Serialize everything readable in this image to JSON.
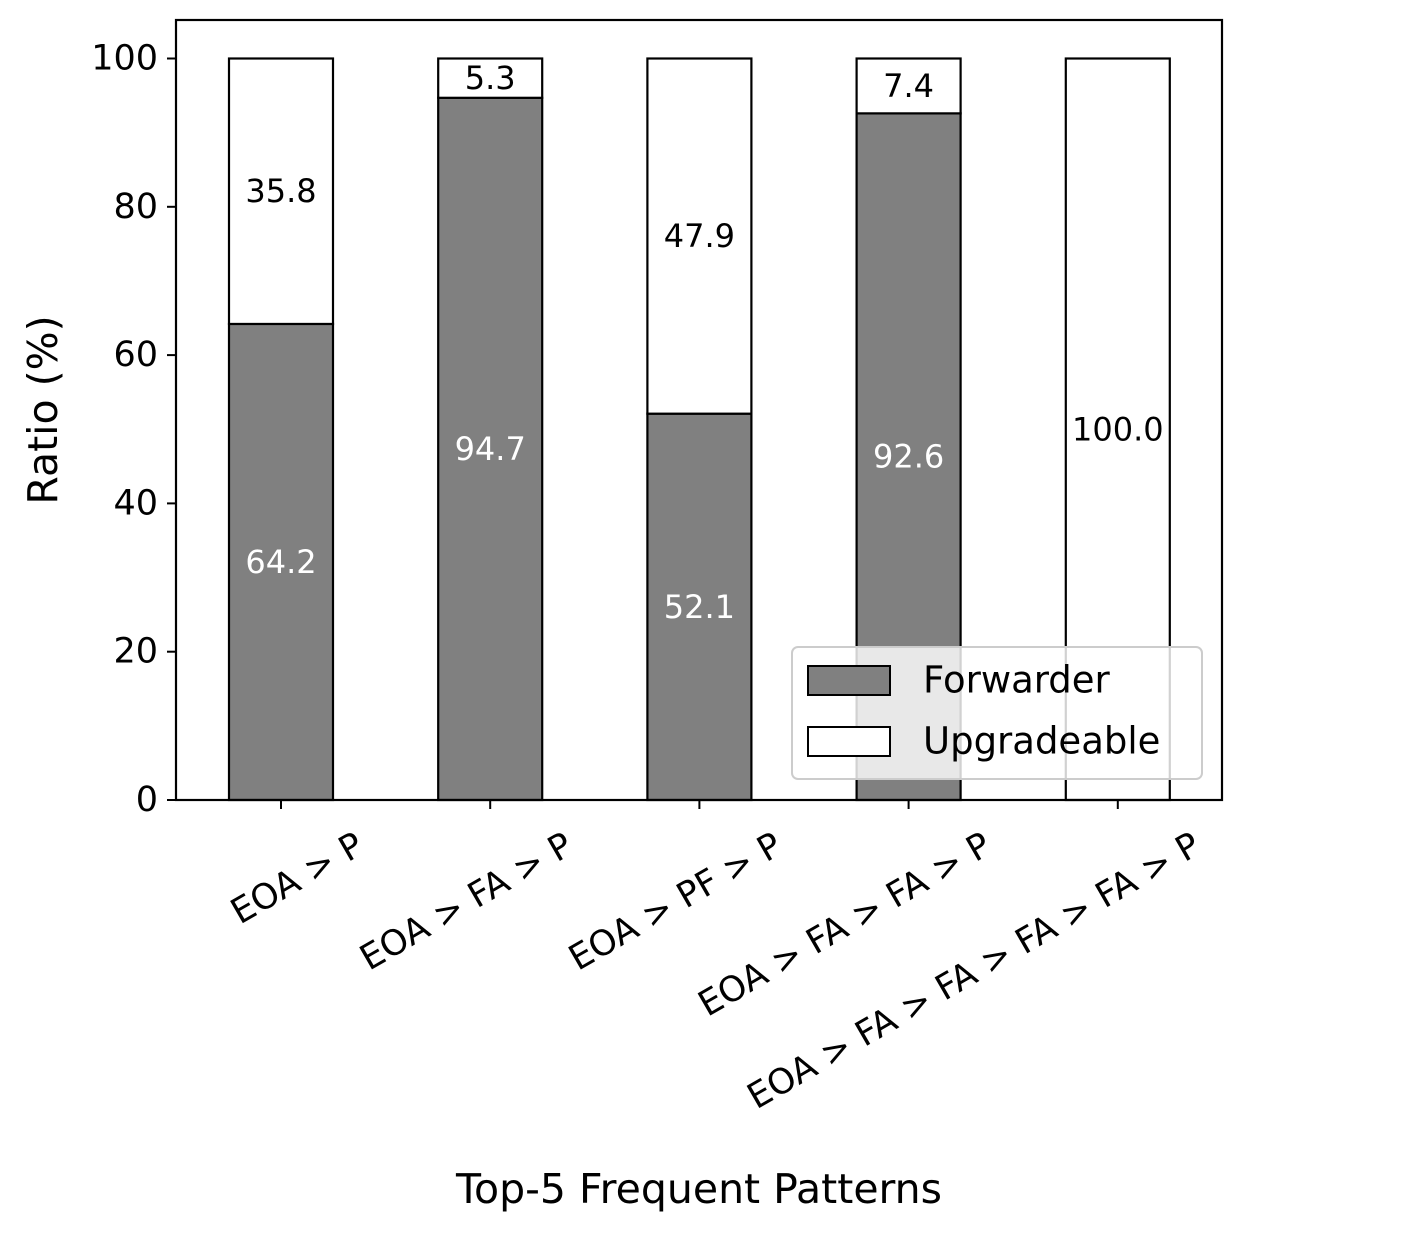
{
  "chart_data": {
    "type": "bar",
    "stacked": true,
    "categories": [
      "EOA > P",
      "EOA > FA > P",
      "EOA > PF > P",
      "EOA > FA > FA > P",
      "EOA > FA > FA > FA > FA > P"
    ],
    "series": [
      {
        "name": "Forwarder",
        "values": [
          64.2,
          94.7,
          52.1,
          92.6,
          0
        ],
        "labels": [
          "64.2",
          "94.7",
          "52.1",
          "92.6",
          ""
        ],
        "color": "#808080",
        "label_color": "#ffffff"
      },
      {
        "name": "Upgradeable",
        "values": [
          35.8,
          5.3,
          47.9,
          7.4,
          100.0
        ],
        "labels": [
          "35.8",
          "5.3",
          "47.9",
          "7.4",
          "100.0"
        ],
        "color": "#ffffff",
        "label_color": "#000000"
      }
    ],
    "title": "",
    "xlabel": "Top-5 Frequent Patterns",
    "ylabel": "Ratio (%)",
    "ylim": [
      0,
      105
    ],
    "yticks": [
      0,
      20,
      40,
      60,
      80,
      100
    ],
    "ytick_labels": [
      "0",
      "20",
      "40",
      "60",
      "80",
      "100"
    ],
    "xtick_rotation": 30,
    "grid": false,
    "legend": {
      "placement": "lower-right",
      "entries": [
        "Forwarder",
        "Upgradeable"
      ]
    }
  }
}
